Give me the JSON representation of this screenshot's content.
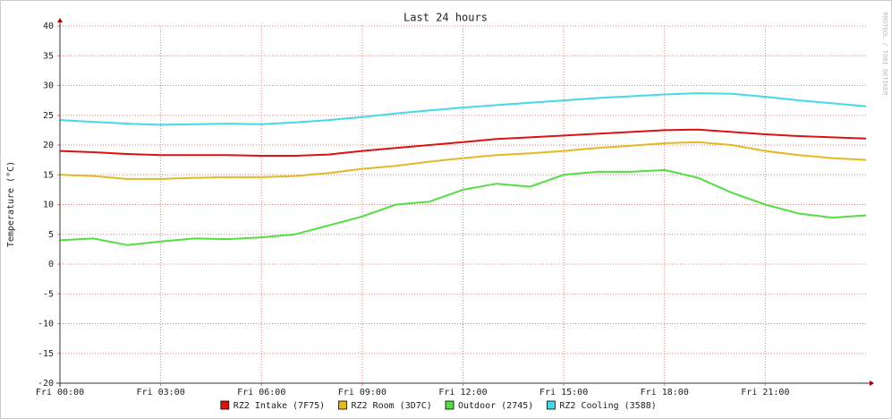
{
  "chart_data": {
    "type": "line",
    "title": "Last 24 hours",
    "y_label": "Temperature (°C)",
    "watermark": "RRDTOOL / TOBI OETIKER",
    "x": [
      0,
      1,
      2,
      3,
      4,
      5,
      6,
      7,
      8,
      9,
      10,
      11,
      12,
      13,
      14,
      15,
      16,
      17,
      18,
      19,
      20,
      21,
      22,
      23,
      24
    ],
    "xlim": [
      0,
      24
    ],
    "xticks": [
      {
        "value": 0,
        "label": "Fri 00:00"
      },
      {
        "value": 3,
        "label": "Fri 03:00"
      },
      {
        "value": 6,
        "label": "Fri 06:00"
      },
      {
        "value": 9,
        "label": "Fri 09:00"
      },
      {
        "value": 12,
        "label": "Fri 12:00"
      },
      {
        "value": 15,
        "label": "Fri 15:00"
      },
      {
        "value": 18,
        "label": "Fri 18:00"
      },
      {
        "value": 21,
        "label": "Fri 21:00"
      }
    ],
    "ylim": [
      -20,
      40
    ],
    "yticks": [
      40,
      35,
      30,
      25,
      20,
      15,
      10,
      5,
      0,
      -5,
      -10,
      -15,
      -20
    ],
    "grid": true,
    "legend": "bottom",
    "series": [
      {
        "name": "RZ2 Intake (7F75)",
        "color": "#dd1111",
        "values": [
          19,
          18.8,
          18.5,
          18.3,
          18.3,
          18.3,
          18.2,
          18.2,
          18.4,
          19,
          19.5,
          20,
          20.5,
          21,
          21.3,
          21.6,
          21.9,
          22.2,
          22.5,
          22.6,
          22.2,
          21.8,
          21.5,
          21.3,
          21.1
        ]
      },
      {
        "name": "RZ2 Room (3D7C)",
        "color": "#e6b822",
        "values": [
          15,
          14.8,
          14.3,
          14.3,
          14.5,
          14.6,
          14.6,
          14.8,
          15.3,
          16,
          16.5,
          17.2,
          17.8,
          18.3,
          18.6,
          19,
          19.5,
          19.9,
          20.3,
          20.5,
          20,
          19,
          18.3,
          17.8,
          17.5
        ]
      },
      {
        "name": "Outdoor (2745)",
        "color": "#55dd44",
        "values": [
          4,
          4.3,
          3.2,
          3.8,
          4.3,
          4.2,
          4.5,
          5,
          6.5,
          8,
          10,
          10.5,
          12.5,
          13.5,
          13,
          15,
          15.5,
          15.5,
          15.8,
          14.5,
          12,
          10,
          8.5,
          7.8,
          8.2
        ]
      },
      {
        "name": "RZ2 Cooling (3588)",
        "color": "#44d8e8",
        "values": [
          24.2,
          23.9,
          23.6,
          23.4,
          23.5,
          23.6,
          23.5,
          23.8,
          24.2,
          24.7,
          25.3,
          25.8,
          26.3,
          26.7,
          27.1,
          27.5,
          27.9,
          28.2,
          28.5,
          28.7,
          28.6,
          28.1,
          27.5,
          27,
          26.5
        ]
      }
    ]
  }
}
